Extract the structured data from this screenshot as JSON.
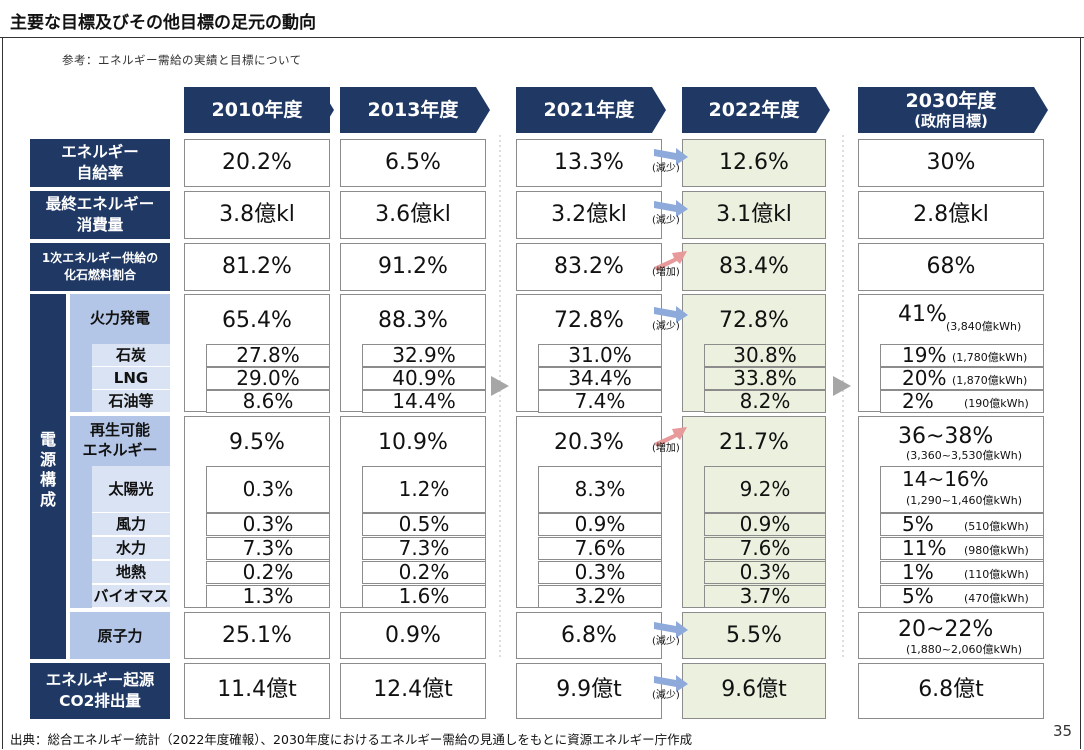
{
  "title": "主要な目標及びその他目標の足元の動向",
  "subtitle": "参考：エネルギー需給の実績と目標について",
  "footer": "出典：総合エネルギー統計（2022年度確報）、2030年度におけるエネルギー需給の見通しをもとに資源エネルギー庁作成",
  "page_number": "35",
  "years": [
    "2010年度",
    "2013年度",
    "2021年度",
    "2022年度",
    "2030年度",
    "(政府目標)"
  ],
  "labels": {
    "self_sufficiency": [
      "エネルギー",
      "自給率"
    ],
    "final_consumption": [
      "最終エネルギー",
      "消費量"
    ],
    "fossil_ratio": [
      "1次エネルギー供給の",
      "化石燃料割合"
    ],
    "power_mix": [
      "電",
      "源",
      "構",
      "成"
    ],
    "thermal": "火力発電",
    "coal": "石炭",
    "lng": "LNG",
    "oil": "石油等",
    "renewable": [
      "再生可能",
      "エネルギー"
    ],
    "solar": "太陽光",
    "wind": "風力",
    "hydro": "水力",
    "geothermal": "地熱",
    "biomass": "バイオマス",
    "nuclear": "原子力",
    "co2": [
      "エネルギー起源",
      "CO2排出量"
    ]
  },
  "changes": {
    "decrease": "(減少)",
    "increase": "(増加)"
  },
  "values": {
    "self_sufficiency": [
      "20.2%",
      "6.5%",
      "13.3%",
      "12.6%",
      "30%"
    ],
    "final_consumption": [
      "3.8億kl",
      "3.6億kl",
      "3.2億kl",
      "3.1億kl",
      "2.8億kl"
    ],
    "fossil_ratio": [
      "81.2%",
      "91.2%",
      "83.2%",
      "83.4%",
      "68%"
    ],
    "thermal": [
      "65.4%",
      "88.3%",
      "72.8%",
      "72.8%",
      "41%"
    ],
    "coal": [
      "27.8%",
      "32.9%",
      "31.0%",
      "30.8%",
      "19%"
    ],
    "lng": [
      "29.0%",
      "40.9%",
      "34.4%",
      "33.8%",
      "20%"
    ],
    "oil": [
      "8.6%",
      "14.4%",
      "7.4%",
      "8.2%",
      "2%"
    ],
    "renewable": [
      "9.5%",
      "10.9%",
      "20.3%",
      "21.7%",
      "36~38%"
    ],
    "solar": [
      "0.3%",
      "1.2%",
      "8.3%",
      "9.2%",
      "14~16%"
    ],
    "wind": [
      "0.3%",
      "0.5%",
      "0.9%",
      "0.9%",
      "5%"
    ],
    "hydro": [
      "7.3%",
      "7.3%",
      "7.6%",
      "7.6%",
      "11%"
    ],
    "geothermal": [
      "0.2%",
      "0.2%",
      "0.3%",
      "0.3%",
      "1%"
    ],
    "biomass": [
      "1.3%",
      "1.6%",
      "3.2%",
      "3.7%",
      "5%"
    ],
    "nuclear": [
      "25.1%",
      "0.9%",
      "6.8%",
      "5.5%",
      "20~22%"
    ],
    "co2": [
      "11.4億t",
      "12.4億t",
      "9.9億t",
      "9.6億t",
      "6.8億t"
    ]
  },
  "notes_2030": {
    "thermal": "(3,840億kWh)",
    "coal": "(1,780億kWh)",
    "lng": "(1,870億kWh)",
    "oil": "(190億kWh)",
    "renewable": "(3,360~3,530億kWh)",
    "solar": "(1,290~1,460億kWh)",
    "wind": "(510億kWh)",
    "hydro": "(980億kWh)",
    "geothermal": "(110億kWh)",
    "biomass": "(470億kWh)",
    "nuclear": "(1,880~2,060億kWh)"
  },
  "colors": {
    "navy": "#1f3864",
    "light_blue": "#b4c6e7",
    "highlight": "#ebf1de",
    "arrow_blue": "#8eaadb",
    "arrow_red": "#e89a9a"
  }
}
